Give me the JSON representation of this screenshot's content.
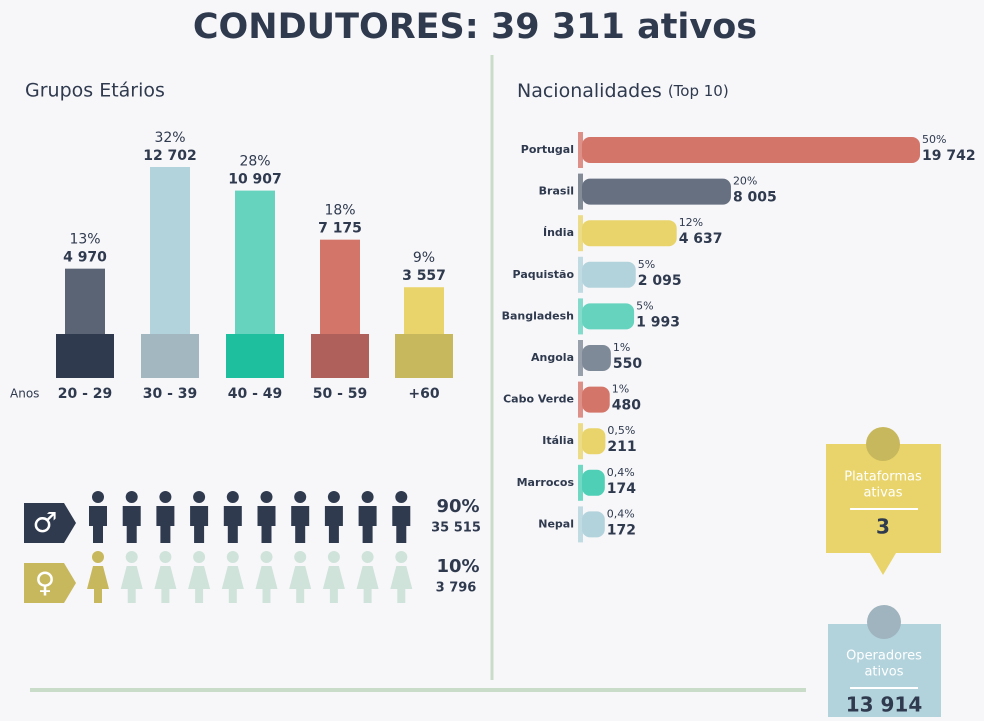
{
  "title": "CONDUTORES: 39 311 ativos",
  "chart_data": [
    {
      "type": "bar",
      "title": "Grupos Etários",
      "axis_label": "Anos",
      "categories": [
        "20 - 29",
        "30 - 39",
        "40 - 49",
        "50 - 59",
        "+60"
      ],
      "values": [
        4970,
        12702,
        10907,
        7175,
        3557
      ],
      "value_labels": [
        "4 970",
        "12 702",
        "10 907",
        "7 175",
        "3 557"
      ],
      "share_labels": [
        "13%",
        "32%",
        "28%",
        "18%",
        "9%"
      ],
      "colors": [
        "#5b6475",
        "#b3d3dc",
        "#66d3bf",
        "#d4756a",
        "#e8d46a"
      ],
      "base_colors": [
        "#2f3a4f",
        "#a3b7c0",
        "#1dbf9f",
        "#b0605b",
        "#c8b85d"
      ]
    },
    {
      "type": "barh",
      "title": "Nacionalidades",
      "subtitle": "(Top 10)",
      "categories": [
        "Portugal",
        "Brasil",
        "Índia",
        "Paquistão",
        "Bangladesh",
        "Angola",
        "Cabo Verde",
        "Itália",
        "Marrocos",
        "Nepal"
      ],
      "values": [
        19742,
        8005,
        4637,
        2095,
        1993,
        550,
        480,
        211,
        174,
        172
      ],
      "value_labels": [
        "19 742",
        "8 005",
        "4 637",
        "2 095",
        "1 993",
        "550",
        "480",
        "211",
        "174",
        "172"
      ],
      "share_labels": [
        "50%",
        "20%",
        "12%",
        "5%",
        "5%",
        "1%",
        "1%",
        "0,5%",
        "0,4%",
        "0,4%"
      ],
      "colors": [
        "#d4756a",
        "#667080",
        "#e8d46a",
        "#b3d3dc",
        "#66d3bf",
        "#7f8a98",
        "#d4756a",
        "#e8d46a",
        "#4fcfb5",
        "#b3d3dc"
      ]
    }
  ],
  "gender": [
    {
      "symbol": "♂",
      "share": "90%",
      "count": "35 515"
    },
    {
      "symbol": "♀",
      "share": "10%",
      "count": "3 796"
    }
  ],
  "stats": [
    {
      "label_lines": [
        "Plataformas",
        "ativas"
      ],
      "value": "3"
    },
    {
      "label_lines": [
        "Operadores",
        "ativos"
      ],
      "value": "13 914"
    }
  ]
}
